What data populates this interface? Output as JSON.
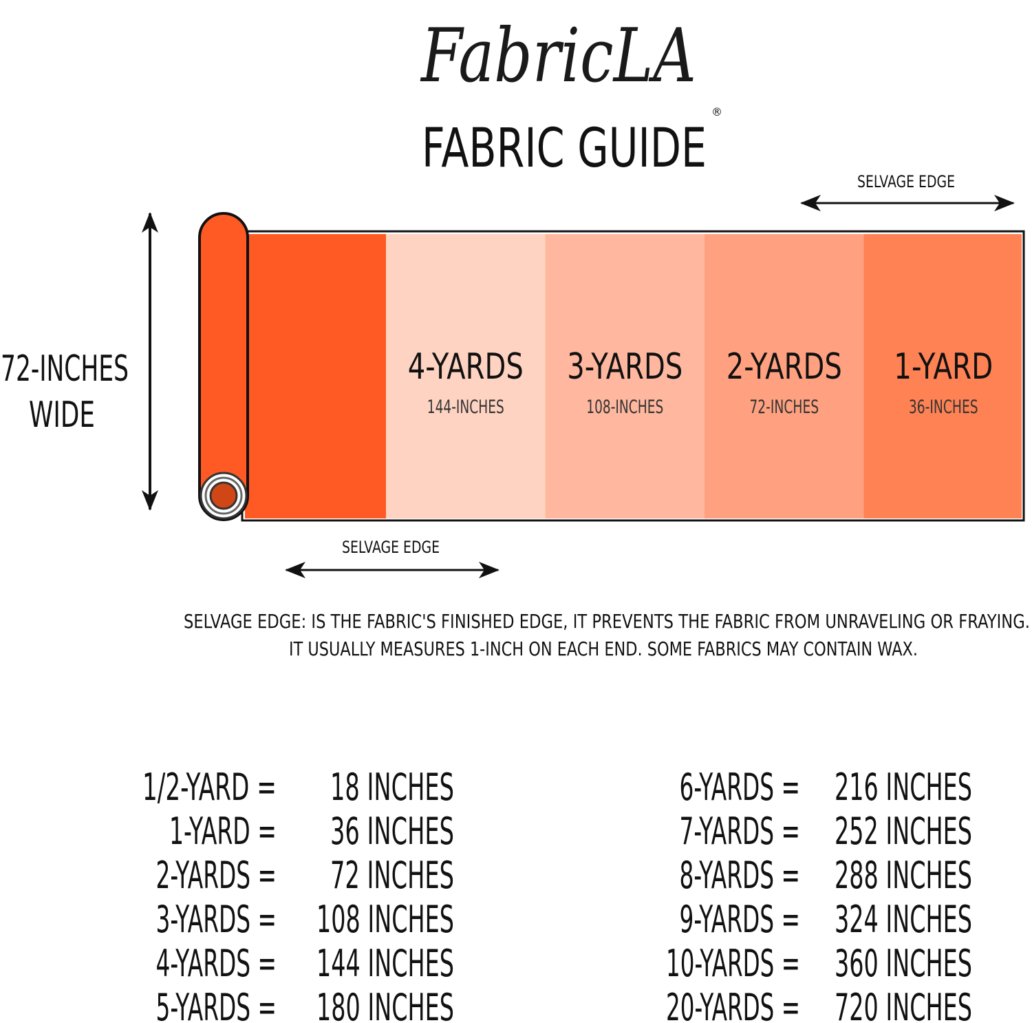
{
  "brand": {
    "logo_text": "FabricLA",
    "registered": "®"
  },
  "title": "FABRIC GUIDE",
  "width_label": {
    "line1": "72-INCHES",
    "line2": "WIDE"
  },
  "selvage_top_label": "SELVAGE EDGE",
  "selvage_bottom_label": "SELVAGE EDGE",
  "segments": [
    {
      "yards": "4-YARDS",
      "inches": "144-INCHES",
      "color": "#FFD3C2"
    },
    {
      "yards": "3-YARDS",
      "inches": "108-INCHES",
      "color": "#FFB89F"
    },
    {
      "yards": "2-YARDS",
      "inches": "72-INCHES",
      "color": "#FFA180"
    },
    {
      "yards": "1-YARD",
      "inches": "36-INCHES",
      "color": "#FF8254"
    }
  ],
  "roll_color": "#FF5A24",
  "note": {
    "line1": "SELVAGE EDGE: IS THE FABRIC'S FINISHED EDGE, IT PREVENTS THE FABRIC FROM UNRAVELING OR FRAYING.",
    "line2": "IT USUALLY MEASURES 1-INCH ON EACH END. SOME FABRICS MAY CONTAIN WAX."
  },
  "conversions_left": [
    {
      "yards": "1/2-YARD =",
      "inches": "18 INCHES"
    },
    {
      "yards": "1-YARD =",
      "inches": "36 INCHES"
    },
    {
      "yards": "2-YARDS =",
      "inches": "72 INCHES"
    },
    {
      "yards": "3-YARDS =",
      "inches": "108 INCHES"
    },
    {
      "yards": "4-YARDS =",
      "inches": "144 INCHES"
    },
    {
      "yards": "5-YARDS =",
      "inches": "180 INCHES"
    }
  ],
  "conversions_right": [
    {
      "yards": "6-YARDS =",
      "inches": "216 INCHES"
    },
    {
      "yards": "7-YARDS =",
      "inches": "252 INCHES"
    },
    {
      "yards": "8-YARDS =",
      "inches": "288 INCHES"
    },
    {
      "yards": "9-YARDS =",
      "inches": "324 INCHES"
    },
    {
      "yards": "10-YARDS =",
      "inches": "360 INCHES"
    },
    {
      "yards": "20-YARDS =",
      "inches": "720 INCHES"
    }
  ]
}
